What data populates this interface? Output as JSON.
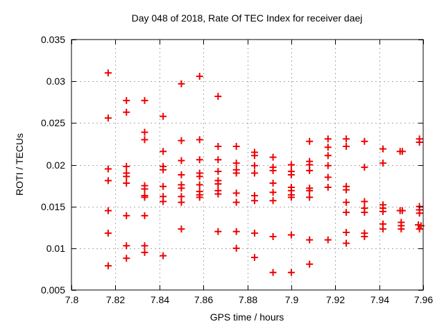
{
  "chart_data": {
    "type": "scatter",
    "title": "Day 048 of 2018, Rate Of TEC Index for receiver daej",
    "xlabel": "GPS time / hours",
    "ylabel": "ROTI / TECUs",
    "xlim": [
      7.8,
      7.96
    ],
    "ylim": [
      0.005,
      0.035
    ],
    "xticks": [
      7.8,
      7.82,
      7.84,
      7.86,
      7.88,
      7.9,
      7.92,
      7.94,
      7.96
    ],
    "xtick_labels": [
      "7.8",
      "7.82",
      "7.84",
      "7.86",
      "7.88",
      "7.9",
      "7.92",
      "7.94",
      "7.96"
    ],
    "yticks": [
      0.005,
      0.01,
      0.015,
      0.02,
      0.025,
      0.03,
      0.035
    ],
    "ytick_labels": [
      "0.005",
      "0.01",
      "0.015",
      "0.02",
      "0.025",
      "0.03",
      "0.035"
    ],
    "grid": true,
    "legend": null,
    "marker": "plus",
    "marker_color": "#ee0000",
    "grid_color": "#a8a8a8",
    "axis_color": "#000000",
    "points": [
      [
        7.8167,
        0.031
      ],
      [
        7.8167,
        0.0256
      ],
      [
        7.8167,
        0.0195
      ],
      [
        7.8167,
        0.0181
      ],
      [
        7.8167,
        0.0145
      ],
      [
        7.8167,
        0.0118
      ],
      [
        7.8167,
        0.0079
      ],
      [
        7.825,
        0.0277
      ],
      [
        7.825,
        0.0263
      ],
      [
        7.825,
        0.0198
      ],
      [
        7.825,
        0.019
      ],
      [
        7.825,
        0.0186
      ],
      [
        7.825,
        0.0178
      ],
      [
        7.825,
        0.0139
      ],
      [
        7.825,
        0.0103
      ],
      [
        7.825,
        0.0088
      ],
      [
        7.8333,
        0.0277
      ],
      [
        7.8333,
        0.0239
      ],
      [
        7.8333,
        0.023
      ],
      [
        7.8333,
        0.0175
      ],
      [
        7.8333,
        0.0171
      ],
      [
        7.8333,
        0.0163
      ],
      [
        7.8333,
        0.0161
      ],
      [
        7.8333,
        0.0139
      ],
      [
        7.8333,
        0.0103
      ],
      [
        7.8333,
        0.0095
      ],
      [
        7.8417,
        0.0258
      ],
      [
        7.8417,
        0.0216
      ],
      [
        7.8417,
        0.0198
      ],
      [
        7.8417,
        0.0194
      ],
      [
        7.8417,
        0.0174
      ],
      [
        7.8417,
        0.0162
      ],
      [
        7.8417,
        0.0156
      ],
      [
        7.8417,
        0.0091
      ],
      [
        7.85,
        0.0297
      ],
      [
        7.85,
        0.0229
      ],
      [
        7.85,
        0.0205
      ],
      [
        7.85,
        0.0188
      ],
      [
        7.85,
        0.0176
      ],
      [
        7.85,
        0.0172
      ],
      [
        7.85,
        0.0162
      ],
      [
        7.85,
        0.0155
      ],
      [
        7.85,
        0.0123
      ],
      [
        7.8583,
        0.0306
      ],
      [
        7.8583,
        0.023
      ],
      [
        7.8583,
        0.0206
      ],
      [
        7.8583,
        0.019
      ],
      [
        7.8583,
        0.0186
      ],
      [
        7.8583,
        0.0176
      ],
      [
        7.8583,
        0.0168
      ],
      [
        7.8583,
        0.0164
      ],
      [
        7.8583,
        0.0161
      ],
      [
        7.8667,
        0.0282
      ],
      [
        7.8667,
        0.0222
      ],
      [
        7.8667,
        0.0206
      ],
      [
        7.8667,
        0.0192
      ],
      [
        7.8667,
        0.0181
      ],
      [
        7.8667,
        0.0177
      ],
      [
        7.8667,
        0.0169
      ],
      [
        7.8667,
        0.0165
      ],
      [
        7.8667,
        0.012
      ],
      [
        7.875,
        0.0222
      ],
      [
        7.875,
        0.0202
      ],
      [
        7.875,
        0.0194
      ],
      [
        7.875,
        0.019
      ],
      [
        7.875,
        0.0166
      ],
      [
        7.875,
        0.0155
      ],
      [
        7.875,
        0.012
      ],
      [
        7.875,
        0.01
      ],
      [
        7.8833,
        0.0215
      ],
      [
        7.8833,
        0.0211
      ],
      [
        7.8833,
        0.0199
      ],
      [
        7.8833,
        0.019
      ],
      [
        7.8833,
        0.0163
      ],
      [
        7.8833,
        0.0157
      ],
      [
        7.8833,
        0.0118
      ],
      [
        7.8833,
        0.0089
      ],
      [
        7.8917,
        0.0209
      ],
      [
        7.8917,
        0.0197
      ],
      [
        7.8917,
        0.0193
      ],
      [
        7.8917,
        0.0178
      ],
      [
        7.8917,
        0.0167
      ],
      [
        7.8917,
        0.0157
      ],
      [
        7.8917,
        0.0114
      ],
      [
        7.8917,
        0.0071
      ],
      [
        7.9,
        0.02
      ],
      [
        7.9,
        0.0192
      ],
      [
        7.9,
        0.0188
      ],
      [
        7.9,
        0.0173
      ],
      [
        7.9,
        0.0169
      ],
      [
        7.9,
        0.0164
      ],
      [
        7.9,
        0.0161
      ],
      [
        7.9,
        0.0116
      ],
      [
        7.9,
        0.0071
      ],
      [
        7.9083,
        0.0228
      ],
      [
        7.9083,
        0.0204
      ],
      [
        7.9083,
        0.02
      ],
      [
        7.9083,
        0.0193
      ],
      [
        7.9083,
        0.0172
      ],
      [
        7.9083,
        0.0169
      ],
      [
        7.9083,
        0.0161
      ],
      [
        7.9083,
        0.011
      ],
      [
        7.9083,
        0.0081
      ],
      [
        7.9167,
        0.0231
      ],
      [
        7.9167,
        0.0221
      ],
      [
        7.9167,
        0.0211
      ],
      [
        7.9167,
        0.0199
      ],
      [
        7.9167,
        0.0185
      ],
      [
        7.9167,
        0.0173
      ],
      [
        7.9167,
        0.011
      ],
      [
        7.925,
        0.0231
      ],
      [
        7.925,
        0.0222
      ],
      [
        7.925,
        0.0174
      ],
      [
        7.925,
        0.017
      ],
      [
        7.925,
        0.0155
      ],
      [
        7.925,
        0.0143
      ],
      [
        7.925,
        0.0119
      ],
      [
        7.925,
        0.0106
      ],
      [
        7.9333,
        0.0228
      ],
      [
        7.9333,
        0.0197
      ],
      [
        7.9333,
        0.0156
      ],
      [
        7.9333,
        0.0148
      ],
      [
        7.9333,
        0.0143
      ],
      [
        7.9333,
        0.0118
      ],
      [
        7.9333,
        0.0114
      ],
      [
        7.9417,
        0.0219
      ],
      [
        7.9417,
        0.0202
      ],
      [
        7.9417,
        0.0152
      ],
      [
        7.9417,
        0.0148
      ],
      [
        7.9417,
        0.0144
      ],
      [
        7.9417,
        0.0129
      ],
      [
        7.9417,
        0.0123
      ],
      [
        7.9495,
        0.0216
      ],
      [
        7.9505,
        0.0216
      ],
      [
        7.9495,
        0.0145
      ],
      [
        7.9505,
        0.0145
      ],
      [
        7.95,
        0.0131
      ],
      [
        7.95,
        0.0127
      ],
      [
        7.95,
        0.0123
      ],
      [
        7.9583,
        0.0231
      ],
      [
        7.9583,
        0.0227
      ],
      [
        7.9583,
        0.015
      ],
      [
        7.9583,
        0.0146
      ],
      [
        7.9583,
        0.0142
      ],
      [
        7.9578,
        0.0128
      ],
      [
        7.959,
        0.0127
      ],
      [
        7.9583,
        0.0123
      ]
    ]
  }
}
